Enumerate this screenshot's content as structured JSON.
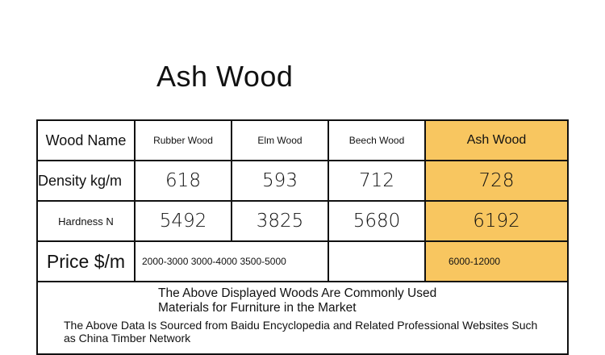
{
  "title": "Ash Wood",
  "table": {
    "header": {
      "row_label": "Wood Name",
      "woods": [
        "Rubber Wood",
        "Elm Wood",
        "Beech Wood",
        "Ash Wood"
      ]
    },
    "density": {
      "label": "Density kg/m",
      "values": [
        "618",
        "593",
        "712",
        "728"
      ]
    },
    "hardness": {
      "label": "Hardness N",
      "values": [
        "5492",
        "3825",
        "5680",
        "6192"
      ]
    },
    "price": {
      "label": "Price $/m",
      "combined": "2000-3000 3000-4000 3500-5000",
      "ash": "6000-12000"
    }
  },
  "footer": {
    "line1": "The Above Displayed Woods Are Commonly Used Materials for Furniture in the Market",
    "line2": "The Above Data Is Sourced from Baidu Encyclopedia and Related Professional Websites Such as China Timber Network"
  },
  "colors": {
    "highlight": "#f8c660",
    "border": "#111111"
  }
}
